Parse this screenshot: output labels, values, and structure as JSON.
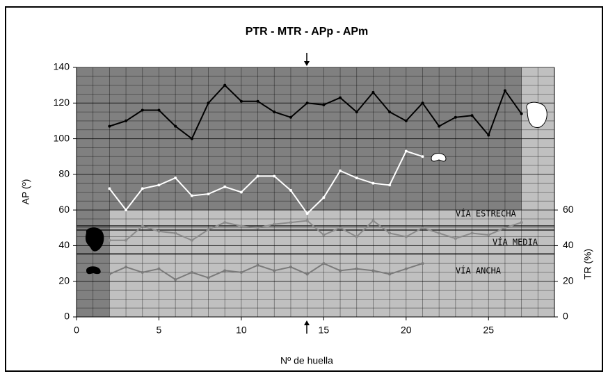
{
  "chart_data": {
    "type": "line",
    "title": "PTR - MTR - APp - APm",
    "xlabel": "Nº de huella",
    "ylabel": "AP (º)",
    "y2label": "TR (%)",
    "xlim": [
      0,
      29
    ],
    "xticks": [
      0,
      5,
      10,
      15,
      20,
      25
    ],
    "ylim": [
      0,
      140
    ],
    "yticks": [
      0,
      20,
      40,
      60,
      80,
      100,
      120,
      140
    ],
    "y2lim": [
      0,
      140
    ],
    "y2ticks": [
      0,
      20,
      40,
      60
    ],
    "grid": true,
    "annotations": [
      "VÍA ESTRECHA",
      "VÍA MEDIA",
      "VÍA ANCHA"
    ],
    "series": [
      {
        "color": "#000000",
        "x": [
          2,
          3,
          4,
          5,
          6,
          7,
          8,
          9,
          10,
          11,
          12,
          13,
          14,
          15,
          16,
          17,
          18,
          19,
          20,
          21,
          22,
          23,
          24,
          25,
          26,
          27
        ],
        "values": [
          107,
          110,
          116,
          116,
          107,
          100,
          120,
          130,
          121,
          121,
          115,
          112,
          120,
          119,
          123,
          115,
          126,
          115,
          110,
          120,
          107,
          112,
          113,
          102,
          127,
          114
        ]
      },
      {
        "color": "#ffffff",
        "x": [
          2,
          3,
          4,
          5,
          6,
          7,
          8,
          9,
          10,
          11,
          12,
          13,
          14,
          15,
          16,
          17,
          18,
          19,
          20,
          21
        ],
        "values": [
          72,
          60,
          72,
          74,
          78,
          68,
          69,
          73,
          70,
          79,
          79,
          71,
          58,
          67,
          82,
          78,
          75,
          74,
          93,
          90
        ]
      },
      {
        "color": "#8a8a8a",
        "axis": "y2",
        "x": [
          2,
          3,
          4,
          5,
          6,
          7,
          8,
          9,
          10,
          11,
          12,
          13,
          14,
          15,
          16,
          17,
          18,
          19,
          20,
          21,
          22,
          23,
          24,
          25,
          26,
          27
        ],
        "values": [
          43,
          43,
          51,
          48,
          47,
          43,
          49,
          53,
          51,
          50,
          52,
          53,
          54,
          46,
          50,
          45,
          54,
          47,
          45,
          50,
          47,
          44,
          47,
          46,
          50,
          53
        ]
      },
      {
        "color": "#7a7a7a",
        "axis": "y2",
        "x": [
          2,
          3,
          4,
          5,
          6,
          7,
          8,
          9,
          10,
          11,
          12,
          13,
          14,
          15,
          16,
          17,
          18,
          19,
          20,
          21
        ],
        "values": [
          24,
          28,
          25,
          27,
          21,
          25,
          22,
          26,
          25,
          29,
          26,
          28,
          24,
          30,
          26,
          27,
          26,
          24,
          27,
          30
        ]
      }
    ]
  }
}
